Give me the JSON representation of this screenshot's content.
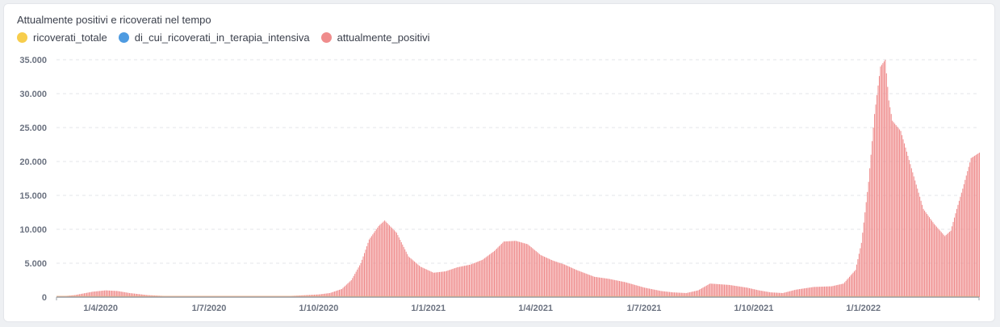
{
  "chart_data": {
    "type": "bar",
    "title": "Attualmente positivi e ricoverati nel tempo",
    "series": [
      {
        "name": "ricoverati_totale",
        "color": "#f7cd4c",
        "values": []
      },
      {
        "name": "di_cui_ricoverati_in_terapia_intensiva",
        "color": "#4e9be1",
        "values": []
      },
      {
        "name": "attualmente_positivi",
        "color": "#ef8c8c",
        "x": [
          "2020-02-24",
          "2020-03-10",
          "2020-03-25",
          "2020-04-05",
          "2020-04-15",
          "2020-04-25",
          "2020-05-10",
          "2020-06-01",
          "2020-07-01",
          "2020-08-01",
          "2020-08-20",
          "2020-09-01",
          "2020-09-15",
          "2020-10-01",
          "2020-10-10",
          "2020-10-20",
          "2020-10-28",
          "2020-11-05",
          "2020-11-12",
          "2020-11-20",
          "2020-11-25",
          "2020-12-05",
          "2020-12-15",
          "2020-12-25",
          "2021-01-05",
          "2021-01-15",
          "2021-01-25",
          "2021-02-05",
          "2021-02-15",
          "2021-02-25",
          "2021-03-05",
          "2021-03-15",
          "2021-03-25",
          "2021-04-05",
          "2021-04-15",
          "2021-04-25",
          "2021-05-05",
          "2021-05-20",
          "2021-06-01",
          "2021-06-15",
          "2021-07-01",
          "2021-07-15",
          "2021-07-25",
          "2021-08-05",
          "2021-08-15",
          "2021-08-25",
          "2021-09-10",
          "2021-09-25",
          "2021-10-05",
          "2021-10-15",
          "2021-10-25",
          "2021-11-05",
          "2021-11-20",
          "2021-12-05",
          "2021-12-15",
          "2021-12-25",
          "2021-12-30",
          "2022-01-05",
          "2022-01-10",
          "2022-01-15",
          "2022-01-19",
          "2022-01-22",
          "2022-01-25",
          "2022-02-01",
          "2022-02-10",
          "2022-02-20",
          "2022-03-01",
          "2022-03-10",
          "2022-03-15",
          "2022-03-20",
          "2022-03-25",
          "2022-04-01",
          "2022-04-08"
        ],
        "values": [
          50,
          300,
          800,
          1000,
          900,
          600,
          300,
          100,
          80,
          60,
          60,
          120,
          250,
          400,
          600,
          1200,
          2500,
          5000,
          8500,
          10500,
          11300,
          9500,
          6000,
          4500,
          3600,
          3800,
          4400,
          4800,
          5500,
          6800,
          8200,
          8300,
          7800,
          6200,
          5400,
          4800,
          4000,
          3000,
          2700,
          2200,
          1400,
          900,
          700,
          600,
          1000,
          2000,
          1800,
          1400,
          1000,
          700,
          600,
          1100,
          1500,
          1600,
          2000,
          4000,
          8000,
          17000,
          27000,
          34000,
          35000,
          29000,
          26000,
          24500,
          19000,
          13000,
          10800,
          9000,
          9800,
          13000,
          16000,
          20500,
          21300
        ]
      }
    ],
    "x_tick_labels": [
      "1/4/2020",
      "1/7/2020",
      "1/10/2020",
      "1/1/2021",
      "1/4/2021",
      "1/7/2021",
      "1/10/2021",
      "1/1/2022"
    ],
    "x_tick_dates": [
      "2020-04-01",
      "2020-07-01",
      "2020-10-01",
      "2021-01-01",
      "2021-04-01",
      "2021-07-01",
      "2021-10-01",
      "2022-01-01"
    ],
    "y_tick_labels": [
      "0",
      "5.000",
      "10.000",
      "15.000",
      "20.000",
      "25.000",
      "30.000",
      "35.000"
    ],
    "y_tick_values": [
      0,
      5000,
      10000,
      15000,
      20000,
      25000,
      30000,
      35000
    ],
    "ylim": [
      0,
      35000
    ],
    "xlim": [
      "2020-02-24",
      "2022-04-08"
    ],
    "grid": true,
    "legend_position": "top-left"
  }
}
